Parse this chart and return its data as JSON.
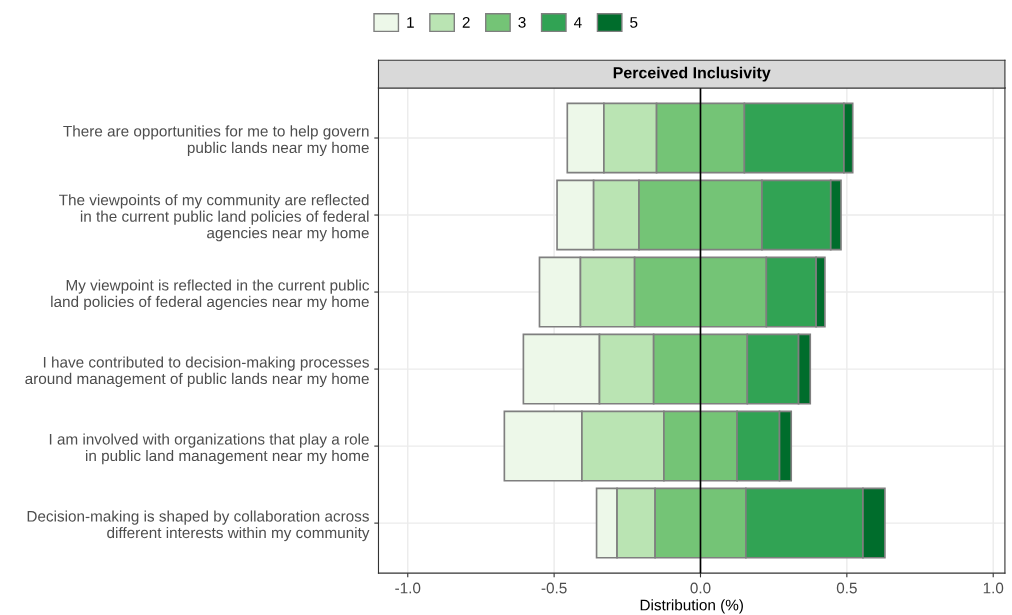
{
  "chart_data": {
    "type": "bar",
    "orientation": "horizontal",
    "title": "Perceived Inclusivity",
    "xlabel": "Distribution (%)",
    "categories": [
      "There are opportunities for me to help govern\npublic lands near my home",
      "The viewpoints of my community are reflected\nin the current public land policies of federal\nagencies near my home",
      "My viewpoint is reflected in the current public\nland policies of federal agencies near my home",
      "I have contributed to decision-making processes\naround management of public lands near my home",
      "I am involved with organizations that play a role\nin public land management near my home",
      "Decision-making is shaped by collaboration across\ndifferent interests within my community"
    ],
    "series": [
      {
        "name": "1",
        "color": "#edf8e9",
        "base": [
          -0.455,
          -0.49,
          -0.55,
          -0.605,
          -0.67,
          -0.355
        ],
        "values": [
          0.125,
          0.125,
          0.14,
          0.26,
          0.265,
          0.07
        ]
      },
      {
        "name": "2",
        "color": "#bae4b3",
        "base": [
          -0.33,
          -0.365,
          -0.41,
          -0.345,
          -0.405,
          -0.285
        ],
        "values": [
          0.18,
          0.155,
          0.185,
          0.185,
          0.28,
          0.13
        ]
      },
      {
        "name": "3",
        "color": "#74c476",
        "base": [
          -0.15,
          -0.21,
          -0.225,
          -0.16,
          -0.125,
          -0.155
        ],
        "values": [
          0.3,
          0.42,
          0.45,
          0.32,
          0.25,
          0.31
        ]
      },
      {
        "name": "4",
        "color": "#31a354",
        "base": [
          0.15,
          0.21,
          0.225,
          0.16,
          0.125,
          0.155
        ],
        "values": [
          0.34,
          0.235,
          0.17,
          0.175,
          0.145,
          0.4
        ]
      },
      {
        "name": "5",
        "color": "#006d2c",
        "base": [
          0.49,
          0.445,
          0.395,
          0.335,
          0.27,
          0.555
        ],
        "values": [
          0.03,
          0.035,
          0.03,
          0.04,
          0.04,
          0.075
        ]
      }
    ],
    "xlim": [
      -1.1,
      1.04
    ],
    "xticks": [
      {
        "value": -1.0,
        "label": "-1.0"
      },
      {
        "value": -0.5,
        "label": "-0.5"
      },
      {
        "value": 0.0,
        "label": "0.0"
      },
      {
        "value": 0.5,
        "label": "0.5"
      },
      {
        "value": 1.0,
        "label": "1.0"
      }
    ],
    "ref_lines": [
      {
        "axis": "x",
        "value": 0,
        "color": "#000000"
      }
    ],
    "grid": true,
    "legend": "top"
  }
}
